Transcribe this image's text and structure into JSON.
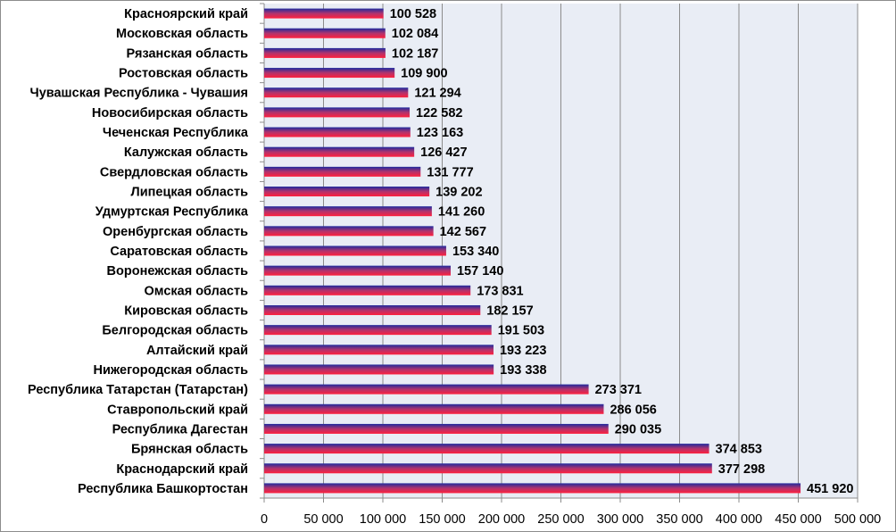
{
  "chart_data": {
    "type": "bar",
    "orientation": "horizontal",
    "categories": [
      "Красноярский край",
      "Московская область",
      "Рязанская  область",
      "Ростовская  область",
      "Чувашская Республика - Чувашия",
      "Новосибирская область",
      "Чеченская Республика",
      "Калужская область",
      "Свердловская область",
      "Липецкая область",
      "Удмуртская Республика",
      "Оренбургская область",
      "Саратовская  область",
      "Воронежская область",
      "Омская область",
      "Кировская область",
      "Белгородская область",
      "Алтайский край",
      "Нижегородская область",
      "Республика Татарстан  (Татарстан)",
      "Ставропольский край",
      "Республика Дагестан",
      "Брянская  область",
      "Краснодарский край",
      "Республика Башкортостан"
    ],
    "values": [
      100528,
      102084,
      102187,
      109900,
      121294,
      122582,
      123163,
      126427,
      131777,
      139202,
      141260,
      142567,
      153340,
      157140,
      173831,
      182157,
      191503,
      193223,
      193338,
      273371,
      286056,
      290035,
      374853,
      377298,
      451920
    ],
    "value_labels": [
      "100 528",
      "102 084",
      "102 187",
      "109 900",
      "121 294",
      "122 582",
      "123 163",
      "126 427",
      "131 777",
      "139 202",
      "141 260",
      "142 567",
      "153 340",
      "157 140",
      "173 831",
      "182 157",
      "191 503",
      "193 223",
      "193 338",
      "273 371",
      "286 056",
      "290 035",
      "374 853",
      "377 298",
      "451 920"
    ],
    "xlim": [
      0,
      500000
    ],
    "x_ticks": [
      0,
      50000,
      100000,
      150000,
      200000,
      250000,
      300000,
      350000,
      400000,
      450000,
      500000
    ],
    "x_tick_labels": [
      "0",
      "50 000",
      "100 000",
      "150 000",
      "200 000",
      "250 000",
      "300 000",
      "350 000",
      "400 000",
      "450 000",
      "500 000"
    ],
    "grid": true,
    "legend": "none",
    "title": "",
    "xlabel": "",
    "ylabel": "",
    "colors": {
      "plot_background": "#e9edf5",
      "gridline": "#8c8c8c",
      "bar_top": "#1f2a9e",
      "bar_middle": "#b0336e",
      "bar_bottom": "#ff1f3d"
    }
  }
}
